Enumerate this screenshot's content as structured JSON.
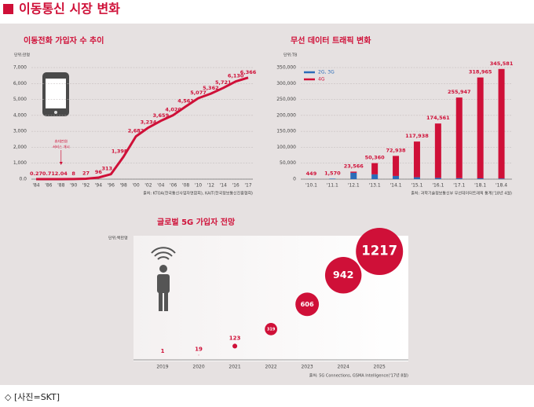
{
  "header": {
    "title": "이동통신 시장 변화"
  },
  "caption": "◇ [사진=SKT]",
  "chart_data": [
    {
      "type": "line",
      "title": "이동전화 가입자 수 추이",
      "unit": "단위:만명",
      "categories": [
        "'84",
        "'86",
        "'88",
        "'90",
        "'92",
        "'94",
        "'96",
        "'98",
        "'00",
        "'02",
        "'04",
        "'06",
        "'08",
        "'10",
        "'12",
        "'14",
        "'16",
        "'17"
      ],
      "values": [
        0.27,
        0.71,
        2.04,
        8,
        27,
        96,
        313,
        1398,
        2682,
        3234,
        3659,
        4020,
        4561,
        5077,
        5362,
        5721,
        6130,
        6366
      ],
      "value_labels": [
        "0.27",
        "0.71",
        "2.04",
        "8",
        "27",
        "96",
        "313",
        "1,398",
        "2,682",
        "3,234",
        "3,659",
        "4,020",
        "4,561",
        "5,077",
        "5,362",
        "5,721",
        "6,130",
        "6,366"
      ],
      "color": "#cf1038",
      "ylim": [
        0,
        7000
      ],
      "yticks": [
        {
          "value": 0,
          "label": "0.0"
        },
        {
          "value": 1000,
          "label": "1,000"
        },
        {
          "value": 2000,
          "label": "2,000"
        },
        {
          "value": 3000,
          "label": "3,000"
        },
        {
          "value": 4000,
          "label": "4,000"
        },
        {
          "value": 5000,
          "label": "5,000"
        },
        {
          "value": 6000,
          "label": "6,000"
        },
        {
          "value": 7000,
          "label": "7,000"
        }
      ],
      "grid": true,
      "annotation": [
        "휴대전화",
        "서비스 개시"
      ],
      "source": "출처: KTOA(한국통신사업자연합회), KAIT(한국정보통신진흥협회)"
    },
    {
      "type": "bar",
      "title": "무선 데이터 트래픽 변화",
      "unit": "단위:TB",
      "categories": [
        "'10.1",
        "'11.1",
        "'12.1",
        "'13.1",
        "'14.1",
        "'15.1",
        "'16.1",
        "'17.1",
        "'18.1",
        "'18.4"
      ],
      "series": [
        {
          "name": "2G, 3G",
          "color": "#2b6cb8",
          "values": [
            449,
            1570,
            20000,
            15000,
            10000,
            6000,
            4000,
            3000,
            2500,
            2000
          ]
        },
        {
          "name": "4G",
          "color": "#cf1038",
          "values": [
            0,
            0,
            3566,
            35360,
            62938,
            111938,
            170561,
            252947,
            316465,
            343581
          ]
        }
      ],
      "totals": [
        449,
        1570,
        23566,
        50360,
        72938,
        117938,
        174561,
        255947,
        318965,
        345581
      ],
      "total_labels": [
        "449",
        "1,570",
        "23,566",
        "50,360",
        "72,938",
        "117,938",
        "174,561",
        "255,947",
        "318,965",
        "345,581"
      ],
      "ylim": [
        0,
        350000
      ],
      "yticks": [
        0,
        {
          "value": 50000,
          "label": "50,000"
        },
        {
          "value": 100000,
          "label": "100,000"
        },
        {
          "value": 150000,
          "label": "150,000"
        },
        {
          "value": 200000,
          "label": "200,000"
        },
        {
          "value": 250000,
          "label": "250,000"
        },
        {
          "value": 300000,
          "label": "300,000"
        },
        {
          "value": 350000,
          "label": "350,000"
        }
      ],
      "grid": true,
      "legend": "upper left",
      "source": "출처: 과학기술정보통신부 무선데이터트래픽 통계('18년 4월)"
    },
    {
      "type": "bubble",
      "title": "글로벌 5G 가입자 전망",
      "unit": "단위:백만명",
      "categories": [
        "2019",
        "2020",
        "2021",
        "2022",
        "2023",
        "2024",
        "2025"
      ],
      "values": [
        1,
        19,
        123,
        319,
        606,
        942,
        1217
      ],
      "color": "#cf1038",
      "source": "출처: 5G Connections, GSMA Intelligence('17년 8월)"
    }
  ]
}
